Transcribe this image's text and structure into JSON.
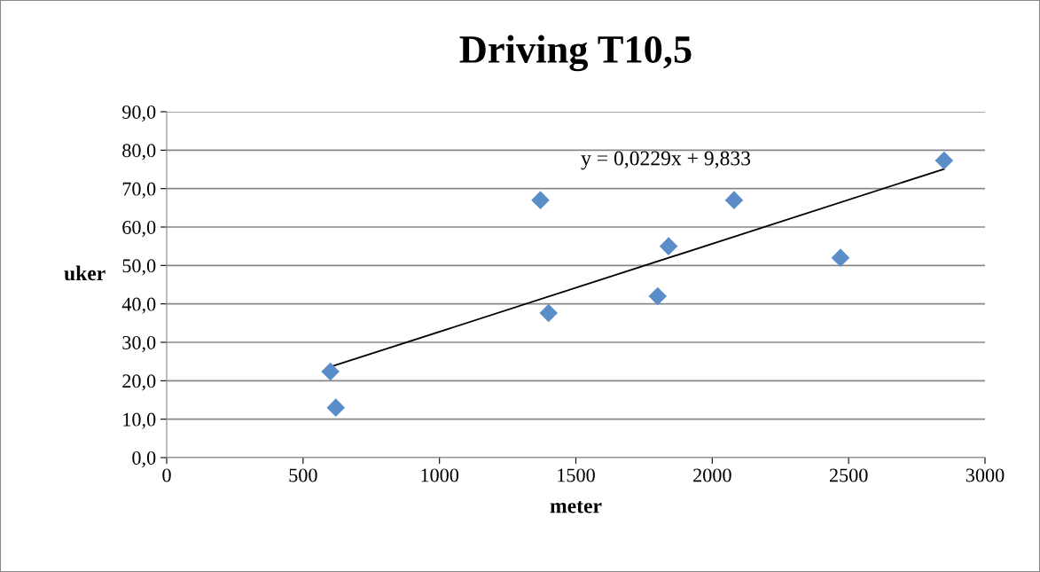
{
  "chart_data": {
    "type": "scatter",
    "title": "Driving T10,5",
    "xlabel": "meter",
    "ylabel": "uker",
    "series": [
      {
        "color": "#5b8ec9",
        "marker": "diamond",
        "x": [
          600,
          620,
          1370,
          1400,
          1800,
          1840,
          2080,
          2470,
          2850
        ],
        "values": [
          22.4,
          13,
          67,
          37.6,
          42,
          55,
          67,
          52,
          77.3
        ]
      },
      {
        "type": "line",
        "color": "#000000",
        "marker": "none",
        "line_style": "solid",
        "x": [
          600,
          2850
        ],
        "values": [
          23.6,
          75.1
        ]
      }
    ],
    "annotations": [
      "y = 0,0229x + 9,833"
    ],
    "xlim": [
      0,
      3000
    ],
    "xticks": [
      0,
      500,
      1000,
      1500,
      2000,
      2500,
      3000
    ],
    "ylim": [
      0,
      90
    ],
    "yticks": [
      {
        "value": 0,
        "label": "0,0"
      },
      {
        "value": 10,
        "label": "10,0"
      },
      {
        "value": 20,
        "label": "20,0"
      },
      {
        "value": 30,
        "label": "30,0"
      },
      {
        "value": 40,
        "label": "40,0"
      },
      {
        "value": 50,
        "label": "50,0"
      },
      {
        "value": 60,
        "label": "60,0"
      },
      {
        "value": 70,
        "label": "70,0"
      },
      {
        "value": 80,
        "label": "80,0"
      },
      {
        "value": 90,
        "label": "90,0"
      }
    ],
    "grid": "y",
    "legend": false
  }
}
